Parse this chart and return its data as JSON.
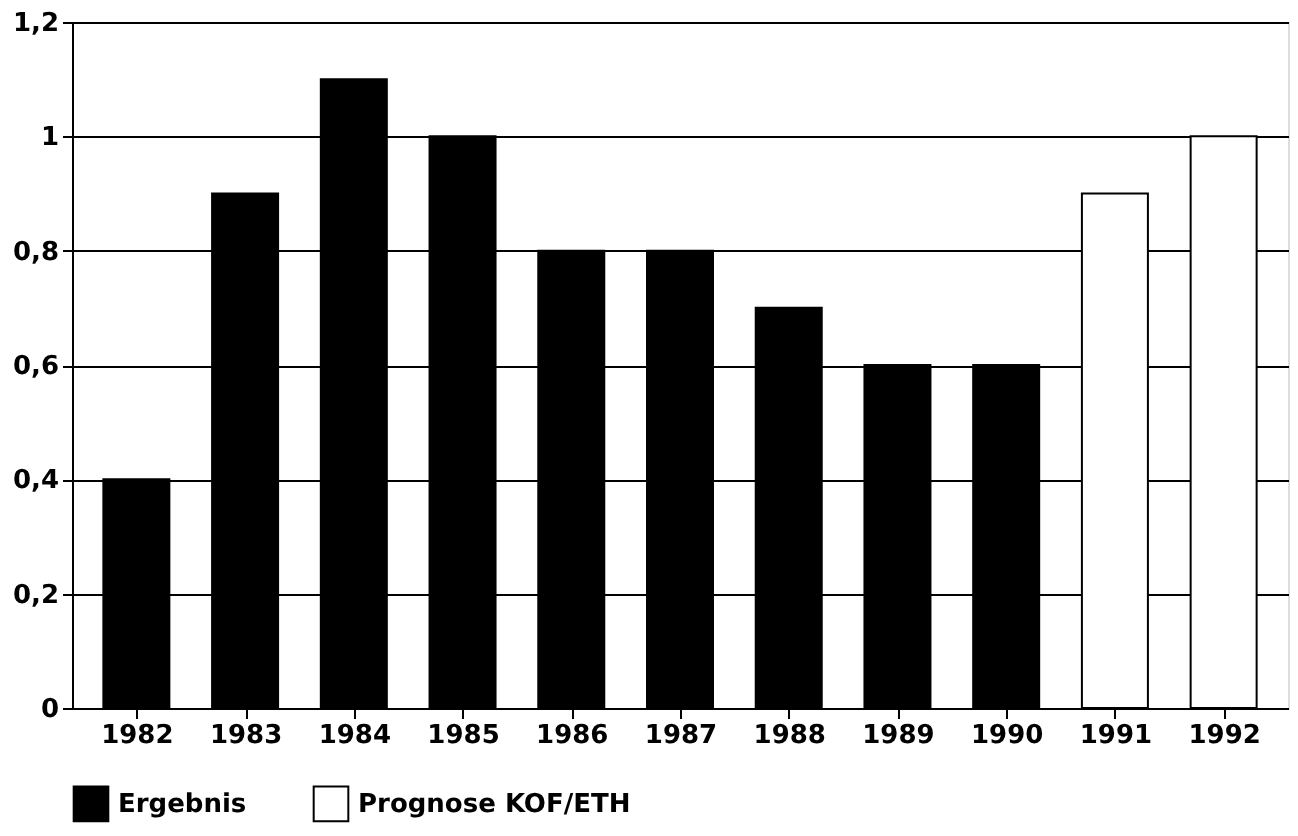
{
  "chart_data": {
    "type": "bar",
    "categories": [
      "1982",
      "1983",
      "1984",
      "1985",
      "1986",
      "1987",
      "1988",
      "1989",
      "1990",
      "1991",
      "1992"
    ],
    "series": [
      {
        "name": "Ergebnis",
        "color": "#000000",
        "values": [
          0.4,
          0.9,
          1.1,
          1.0,
          0.8,
          0.8,
          0.7,
          0.6,
          0.6,
          null,
          null
        ]
      },
      {
        "name": "Prognose KOF/ETH",
        "color": "#ffffff",
        "values": [
          null,
          null,
          null,
          null,
          null,
          null,
          null,
          null,
          null,
          0.9,
          1.0
        ]
      }
    ],
    "ylim": [
      0,
      1.2
    ],
    "yticks": [
      0,
      {
        "value": 0.2,
        "label": "0,2"
      },
      {
        "value": 0.4,
        "label": "0,4"
      },
      {
        "value": 0.6,
        "label": "0,6"
      },
      {
        "value": 0.8,
        "label": "0,8"
      },
      1,
      {
        "value": 1.2,
        "label": "1,2"
      }
    ],
    "grid": "y",
    "legend": "bottom"
  }
}
